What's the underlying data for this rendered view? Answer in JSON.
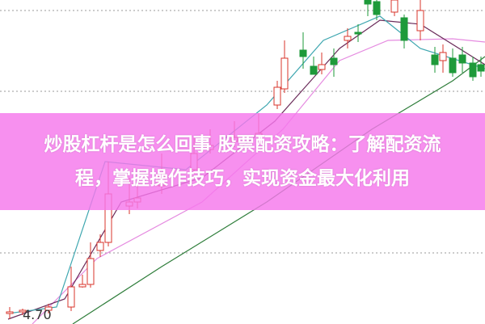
{
  "headline": {
    "line1": "炒股杠杆是怎么回事 股票配资攻略：了解配资流",
    "line2": "程，掌握操作技巧，实现资金最大化利用"
  },
  "chart_data": {
    "type": "candlestick",
    "price_label": "4.70",
    "grid": "dotted horizontal",
    "colors": {
      "up": "#d9342b",
      "down": "#1e9a3a",
      "ma_short": "#3fa7b0",
      "ma_mid": "#6b2c5a",
      "ma_long": "#e58be0",
      "ma_longer": "#2e7d3a",
      "overlay": "#f578eb"
    }
  }
}
